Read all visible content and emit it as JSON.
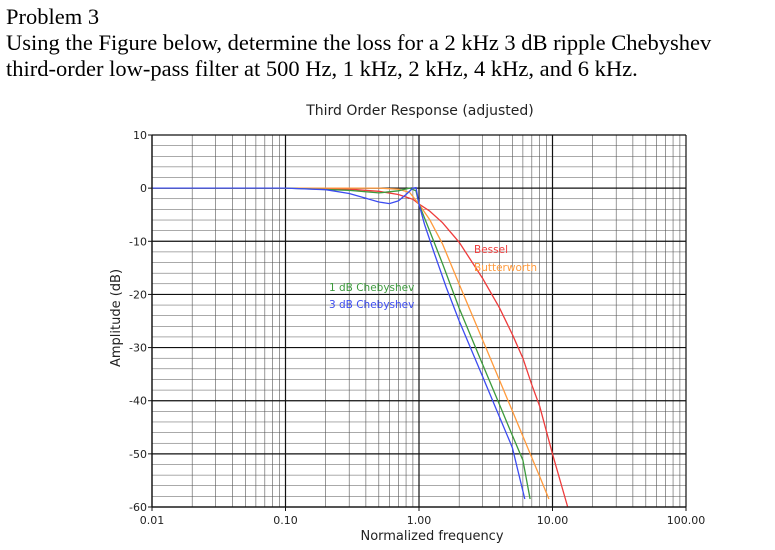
{
  "problem": {
    "heading": "Problem 3",
    "line1": "Using the Figure below, determine the loss for a 2 kHz 3 dB ripple Chebyshev",
    "line2": "third-order low-pass filter at 500 Hz, 1 kHz, 2 kHz, 4 kHz, and 6 kHz."
  },
  "chart_data": {
    "type": "line",
    "title": "Third Order Response (adjusted)",
    "xlabel": "Normalized frequency",
    "ylabel": "Amplitude (dB)",
    "xscale": "log",
    "xlim": [
      0.01,
      100
    ],
    "ylim": [
      -60,
      10
    ],
    "xticks": [
      0.01,
      0.1,
      1,
      10,
      100
    ],
    "xtick_labels": [
      "0.01",
      "0.10",
      "1.00",
      "10.00",
      "100.00"
    ],
    "yticks": [
      10,
      0,
      -10,
      -20,
      -30,
      -40,
      -50,
      -60
    ],
    "ytick_labels": [
      "10",
      "0",
      "-10",
      "-20",
      "-30",
      "-40",
      "-50",
      "-60"
    ],
    "grid": true,
    "legend": "inline labels",
    "series": [
      {
        "name": "Bessel",
        "color": "#ee3b3b",
        "x": [
          0.01,
          0.1,
          0.3,
          0.5,
          0.7,
          0.9,
          1.0,
          1.2,
          1.5,
          2,
          3,
          4,
          5,
          6,
          7,
          8,
          10,
          13
        ],
        "y": [
          0,
          0,
          -0.2,
          -0.6,
          -1.2,
          -2.1,
          -3.0,
          -4.3,
          -6.5,
          -10.2,
          -17,
          -22.5,
          -27.5,
          -32,
          -37,
          -41,
          -50,
          -60
        ]
      },
      {
        "name": "Butterworth",
        "color": "#ff9a3c",
        "x": [
          0.01,
          0.1,
          0.3,
          0.5,
          0.7,
          0.85,
          1.0,
          1.2,
          1.5,
          2,
          3,
          4,
          5,
          6,
          7,
          8,
          9.4
        ],
        "y": [
          0,
          0,
          0,
          0,
          -0.2,
          -0.8,
          -3.0,
          -5.9,
          -10.5,
          -18.1,
          -28.6,
          -36.1,
          -41.9,
          -46.7,
          -50.7,
          -54.2,
          -58.5
        ]
      },
      {
        "name": "1 dB Chebyshev",
        "color": "#3c9a3c",
        "x": [
          0.01,
          0.1,
          0.3,
          0.5,
          0.7,
          0.85,
          0.95,
          1.0,
          1.2,
          1.5,
          2,
          3,
          4,
          5,
          6,
          6.8
        ],
        "y": [
          0,
          0,
          -0.4,
          -0.9,
          -0.5,
          0,
          -0.5,
          -3.0,
          -8.0,
          -14.2,
          -22.6,
          -33.2,
          -40.7,
          -46.5,
          -51.2,
          -58.5
        ]
      },
      {
        "name": "3 dB Chebyshev",
        "color": "#3c4cf0",
        "x": [
          0.01,
          0.1,
          0.2,
          0.3,
          0.4,
          0.5,
          0.6,
          0.7,
          0.8,
          0.9,
          0.95,
          1.0,
          1.1,
          1.3,
          1.6,
          2,
          3,
          4,
          5,
          6.2
        ],
        "y": [
          0,
          0,
          -0.3,
          -1.0,
          -1.9,
          -2.6,
          -2.9,
          -2.4,
          -1.2,
          0,
          0.1,
          -3.0,
          -6.8,
          -12.2,
          -18.7,
          -25,
          -35.5,
          -43.0,
          -48.8,
          -58.5
        ]
      }
    ],
    "labels": [
      "Bessel",
      "Butterworth",
      "1 dB Chebyshev",
      "3 dB Chebyshev"
    ]
  }
}
